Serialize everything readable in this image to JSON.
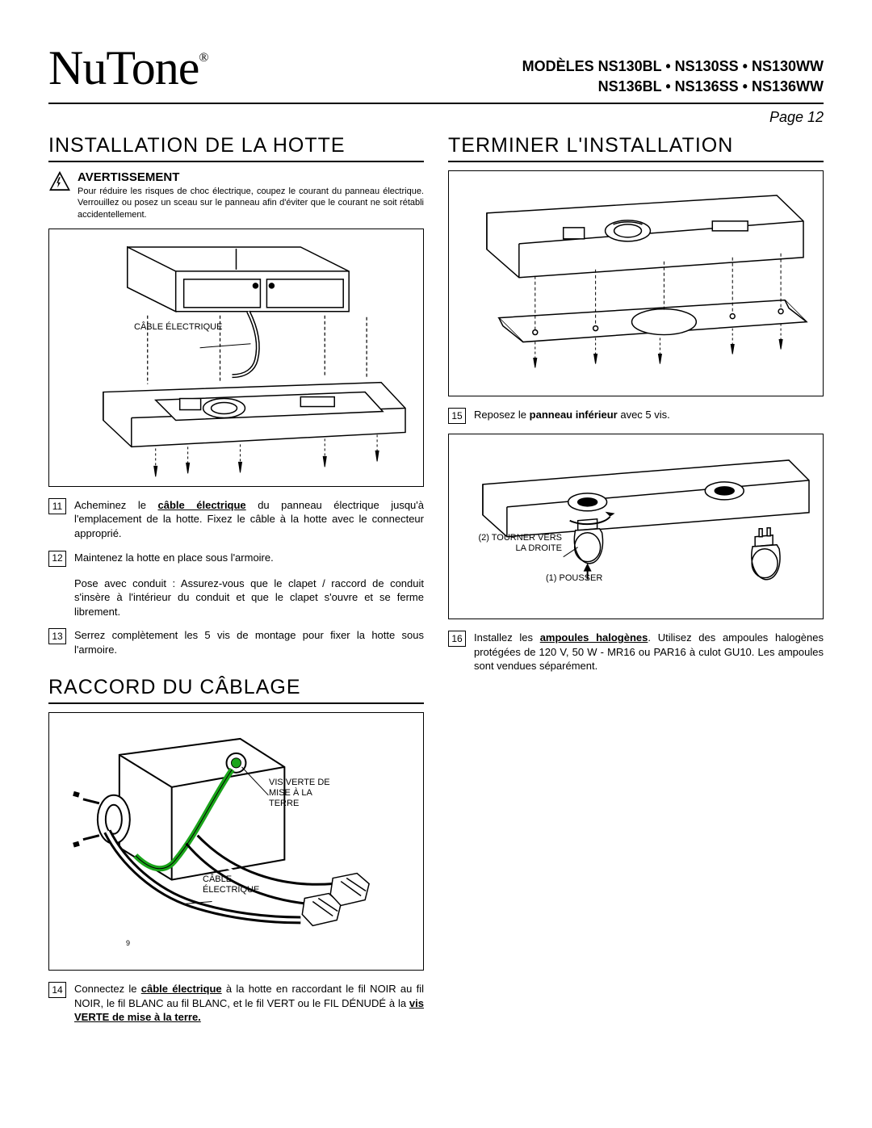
{
  "brand": "NuTone",
  "brand_reg": "®",
  "models_line1": "MODÈLES NS130BL • NS130SS • NS130WW",
  "models_line2": "NS136BL • NS136SS • NS136WW",
  "page_label": "Page 12",
  "left": {
    "title1": "INSTALLATION DE LA HOTTE",
    "warn_title": "AVERTISSEMENT",
    "warn_text": "Pour réduire les risques de choc électrique, coupez le courant du panneau électrique. Verrouillez ou posez un sceau sur le panneau afin d'éviter que le courant ne soit rétabli accidentellement.",
    "fig1_label": "CÂBLE ÉLECTRIQUE",
    "steps1": [
      {
        "n": "11",
        "html": "Acheminez le <span class='b u'>câble électrique</span> du panneau électrique jusqu'à l'emplacement de la hotte. Fixez le câble à la hotte avec le connecteur approprié."
      },
      {
        "n": "12",
        "html": "Maintenez la hotte en place sous l'armoire."
      },
      {
        "n": "",
        "html": "Pose avec conduit : Assurez-vous que le clapet / raccord de conduit s'insère à l'intérieur du conduit et que le clapet s'ouvre et se ferme librement."
      },
      {
        "n": "13",
        "html": "Serrez complètement les 5 vis de montage pour fixer la hotte sous l'armoire."
      }
    ],
    "title2": "RACCORD DU CÂBLAGE",
    "fig2_label1": "VIS VERTE DE MISE À LA TERRE",
    "fig2_label2": "CÂBLE ÉLECTRIQUE",
    "fig2_small": "9",
    "steps2": [
      {
        "n": "14",
        "html": "Connectez le <span class='b u'>câble électrique</span> à la hotte en raccordant le fil NOIR au fil NOIR, le fil BLANC au fil BLANC, et le fil VERT ou le FIL DÉNUDÉ à la <span class='b u'>vis VERTE de mise à la terre.</span>"
      }
    ]
  },
  "right": {
    "title": "TERMINER L'INSTALLATION",
    "steps1": [
      {
        "n": "15",
        "html": "Reposez le <span class='b'>panneau inférieur</span> avec 5 vis."
      }
    ],
    "fig2_label1": "(2) TOURNER VERS LA DROITE",
    "fig2_label2": "(1) POUSSER",
    "steps2": [
      {
        "n": "16",
        "html": "Installez les <span class='b u'>ampoules halogènes</span>. Utilisez des ampoules halogènes protégées de 120 V, 50 W - MR16 ou PAR16 à culot GU10. Les ampoules sont vendues séparément."
      }
    ]
  },
  "colors": {
    "ground_wire": "#1aa51a",
    "line": "#000000"
  }
}
